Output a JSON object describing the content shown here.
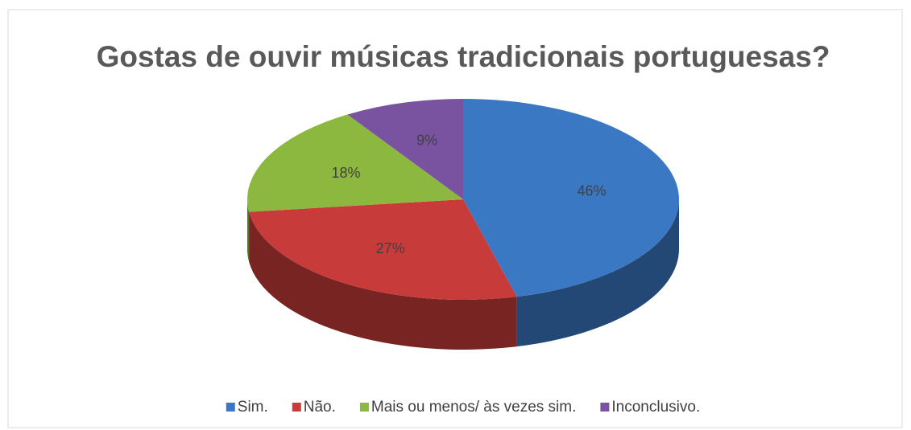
{
  "chart_data": {
    "type": "pie",
    "title": "Gostas de ouvir músicas tradicionais portuguesas?",
    "categories": [
      "Sim.",
      "Não.",
      "Mais ou menos/ às vezes sim.",
      "Inconclusivo."
    ],
    "values": [
      46,
      27,
      18,
      9
    ],
    "value_labels": [
      "46%",
      "27%",
      "18%",
      "9%"
    ],
    "colors": [
      "#3a78c4",
      "#c73c3a",
      "#8db83f",
      "#7952a0"
    ],
    "legend": "bottom"
  }
}
